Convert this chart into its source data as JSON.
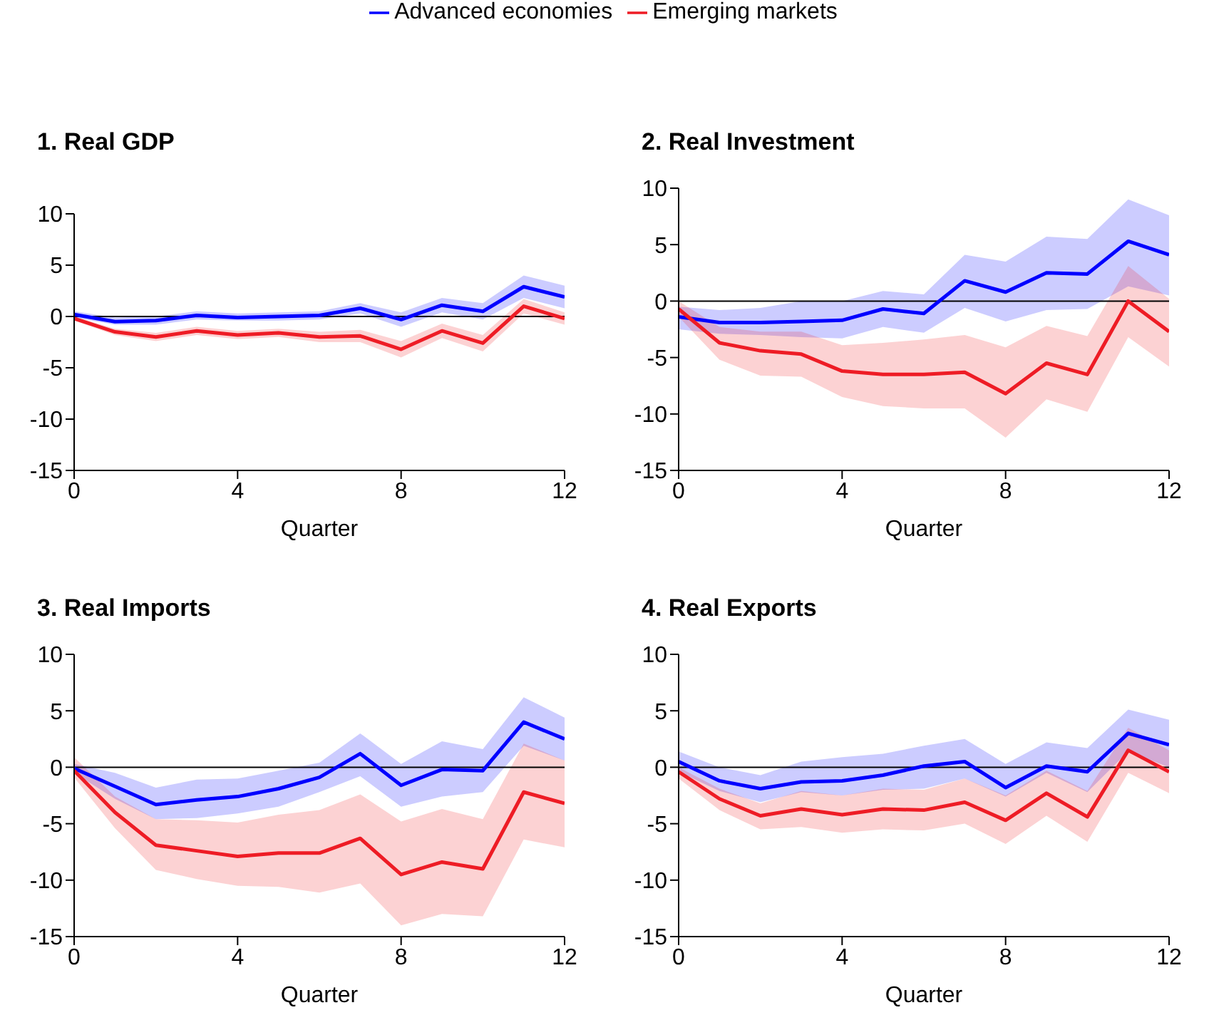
{
  "chart_data": [
    {
      "type": "line",
      "title": "1. Real GDP",
      "xlabel": "Quarter",
      "x": [
        0,
        1,
        2,
        3,
        4,
        5,
        6,
        7,
        8,
        9,
        10,
        11,
        12
      ],
      "xlim": [
        0,
        12
      ],
      "xticks": [
        0,
        4,
        8,
        12
      ],
      "ylim": [
        -15,
        10
      ],
      "yticks": [
        -15,
        -10,
        -5,
        0,
        5,
        10
      ],
      "legend": "top",
      "ref_lines": [
        {
          "axis": "y",
          "value": 0,
          "color": "#000000"
        }
      ],
      "series": [
        {
          "name": "Advanced economies",
          "color": "#0000ff",
          "values": [
            0.2,
            -0.5,
            -0.4,
            0.1,
            -0.1,
            0,
            0.1,
            0.8,
            -0.3,
            1.1,
            0.5,
            2.9,
            1.9
          ],
          "lower": [
            -0.1,
            -0.8,
            -0.8,
            -0.3,
            -0.4,
            -0.4,
            -0.3,
            0.3,
            -1,
            0.4,
            -0.3,
            1.8,
            0.8
          ],
          "upper": [
            0.5,
            -0.1,
            0,
            0.5,
            0.3,
            0.4,
            0.5,
            1.3,
            0.4,
            1.8,
            1.3,
            4,
            3
          ]
        },
        {
          "name": "Emerging markets",
          "color": "#ee1c25",
          "values": [
            -0.2,
            -1.5,
            -2,
            -1.4,
            -1.8,
            -1.6,
            -2,
            -1.9,
            -3.2,
            -1.4,
            -2.6,
            1,
            -0.2
          ],
          "lower": [
            -0.4,
            -1.8,
            -2.4,
            -1.8,
            -2.2,
            -2,
            -2.5,
            -2.5,
            -4,
            -2.1,
            -3.4,
            0.3,
            -0.8
          ],
          "upper": [
            0,
            -1.2,
            -1.6,
            -1,
            -1.4,
            -1.2,
            -1.5,
            -1.3,
            -2.4,
            -0.7,
            -1.8,
            1.7,
            0.4
          ]
        }
      ]
    },
    {
      "type": "line",
      "title": "2. Real Investment",
      "xlabel": "Quarter",
      "x": [
        0,
        1,
        2,
        3,
        4,
        5,
        6,
        7,
        8,
        9,
        10,
        11,
        12
      ],
      "xlim": [
        0,
        12
      ],
      "xticks": [
        0,
        4,
        8,
        12
      ],
      "ylim": [
        -15,
        10
      ],
      "yticks": [
        -15,
        -10,
        -5,
        0,
        5,
        10
      ],
      "ref_lines": [
        {
          "axis": "y",
          "value": 0,
          "color": "#000000"
        }
      ],
      "series": [
        {
          "color": "#0000ff",
          "values": [
            -1.4,
            -1.9,
            -1.9,
            -1.8,
            -1.7,
            -0.7,
            -1.1,
            1.8,
            0.8,
            2.5,
            2.4,
            5.3,
            4.1
          ],
          "lower": [
            -2.5,
            -2.9,
            -3,
            -3.2,
            -3.3,
            -2.3,
            -2.8,
            -0.6,
            -1.8,
            -0.8,
            -0.7,
            1.3,
            0.5
          ],
          "upper": [
            -0.5,
            -0.8,
            -0.6,
            0,
            0,
            0.9,
            0.6,
            4.1,
            3.5,
            5.7,
            5.5,
            9,
            7.6
          ]
        },
        {
          "color": "#ee1c25",
          "values": [
            -0.7,
            -3.7,
            -4.4,
            -4.7,
            -6.2,
            -6.5,
            -6.5,
            -6.3,
            -8.2,
            -5.5,
            -6.5,
            0,
            -2.7
          ],
          "lower": [
            -1.4,
            -5.2,
            -6.6,
            -6.7,
            -8.5,
            -9.3,
            -9.5,
            -9.5,
            -12.1,
            -8.7,
            -9.8,
            -3.2,
            -5.8
          ],
          "upper": [
            0,
            -2.3,
            -2.7,
            -2.7,
            -3.9,
            -3.7,
            -3.4,
            -3,
            -4.1,
            -2.2,
            -3.1,
            3.1,
            0.2
          ]
        }
      ]
    },
    {
      "type": "line",
      "title": "3. Real Imports",
      "xlabel": "Quarter",
      "x": [
        0,
        1,
        2,
        3,
        4,
        5,
        6,
        7,
        8,
        9,
        10,
        11,
        12
      ],
      "xlim": [
        0,
        12
      ],
      "xticks": [
        0,
        4,
        8,
        12
      ],
      "ylim": [
        -15,
        10
      ],
      "yticks": [
        -15,
        -10,
        -5,
        0,
        5,
        10
      ],
      "ref_lines": [
        {
          "axis": "y",
          "value": 0,
          "color": "#000000"
        }
      ],
      "series": [
        {
          "color": "#0000ff",
          "values": [
            -0.1,
            -1.7,
            -3.3,
            -2.9,
            -2.6,
            -1.9,
            -0.9,
            1.2,
            -1.6,
            -0.2,
            -0.3,
            4,
            2.5
          ],
          "lower": [
            -0.5,
            -2.8,
            -4.6,
            -4.5,
            -4.1,
            -3.5,
            -2.2,
            -0.8,
            -3.5,
            -2.6,
            -2.2,
            1.9,
            0.6
          ],
          "upper": [
            0.3,
            -0.5,
            -1.8,
            -1.1,
            -1,
            -0.3,
            0.4,
            3,
            0.3,
            2.3,
            1.6,
            6.2,
            4.4
          ]
        },
        {
          "color": "#ee1c25",
          "values": [
            -0.3,
            -4,
            -6.9,
            -7.4,
            -7.9,
            -7.6,
            -7.6,
            -6.3,
            -9.5,
            -8.4,
            -9,
            -2.2,
            -3.2
          ],
          "lower": [
            -0.9,
            -5.4,
            -9.1,
            -9.9,
            -10.5,
            -10.6,
            -11.1,
            -10.3,
            -14,
            -13,
            -13.2,
            -6.4,
            -7.1
          ],
          "upper": [
            0.9,
            -2.6,
            -4.6,
            -4.7,
            -4.9,
            -4.2,
            -3.8,
            -2.4,
            -4.8,
            -3.7,
            -4.6,
            2.1,
            0.6
          ]
        }
      ]
    },
    {
      "type": "line",
      "title": "4. Real Exports",
      "xlabel": "Quarter",
      "x": [
        0,
        1,
        2,
        3,
        4,
        5,
        6,
        7,
        8,
        9,
        10,
        11,
        12
      ],
      "xlim": [
        0,
        12
      ],
      "xticks": [
        0,
        4,
        8,
        12
      ],
      "ylim": [
        -15,
        10
      ],
      "yticks": [
        -15,
        -10,
        -5,
        0,
        5,
        10
      ],
      "ref_lines": [
        {
          "axis": "y",
          "value": 0,
          "color": "#000000"
        }
      ],
      "series": [
        {
          "color": "#0000ff",
          "values": [
            0.5,
            -1.2,
            -1.9,
            -1.3,
            -1.2,
            -0.7,
            0.1,
            0.5,
            -1.8,
            0.1,
            -0.4,
            3,
            2
          ],
          "lower": [
            -0.4,
            -2.1,
            -3.1,
            -2.2,
            -2.5,
            -2,
            -1.9,
            -1,
            -2.6,
            -0.5,
            -2.2,
            1.4,
            0
          ],
          "upper": [
            1.4,
            0,
            -0.7,
            0.5,
            0.9,
            1.2,
            1.9,
            2.5,
            0.3,
            2.2,
            1.7,
            5.1,
            4.2
          ]
        },
        {
          "color": "#ee1c25",
          "values": [
            -0.4,
            -2.8,
            -4.3,
            -3.7,
            -4.2,
            -3.7,
            -3.8,
            -3.1,
            -4.7,
            -2.3,
            -4.4,
            1.5,
            -0.4
          ],
          "lower": [
            -1,
            -3.8,
            -5.5,
            -5.3,
            -5.8,
            -5.5,
            -5.6,
            -5,
            -6.8,
            -4.3,
            -6.6,
            -0.5,
            -2.3
          ],
          "upper": [
            0,
            -1.9,
            -3.2,
            -2.1,
            -2.5,
            -1.9,
            -2,
            -1,
            -2.5,
            -0.3,
            -2.1,
            3.5,
            1.5
          ]
        }
      ]
    }
  ]
}
